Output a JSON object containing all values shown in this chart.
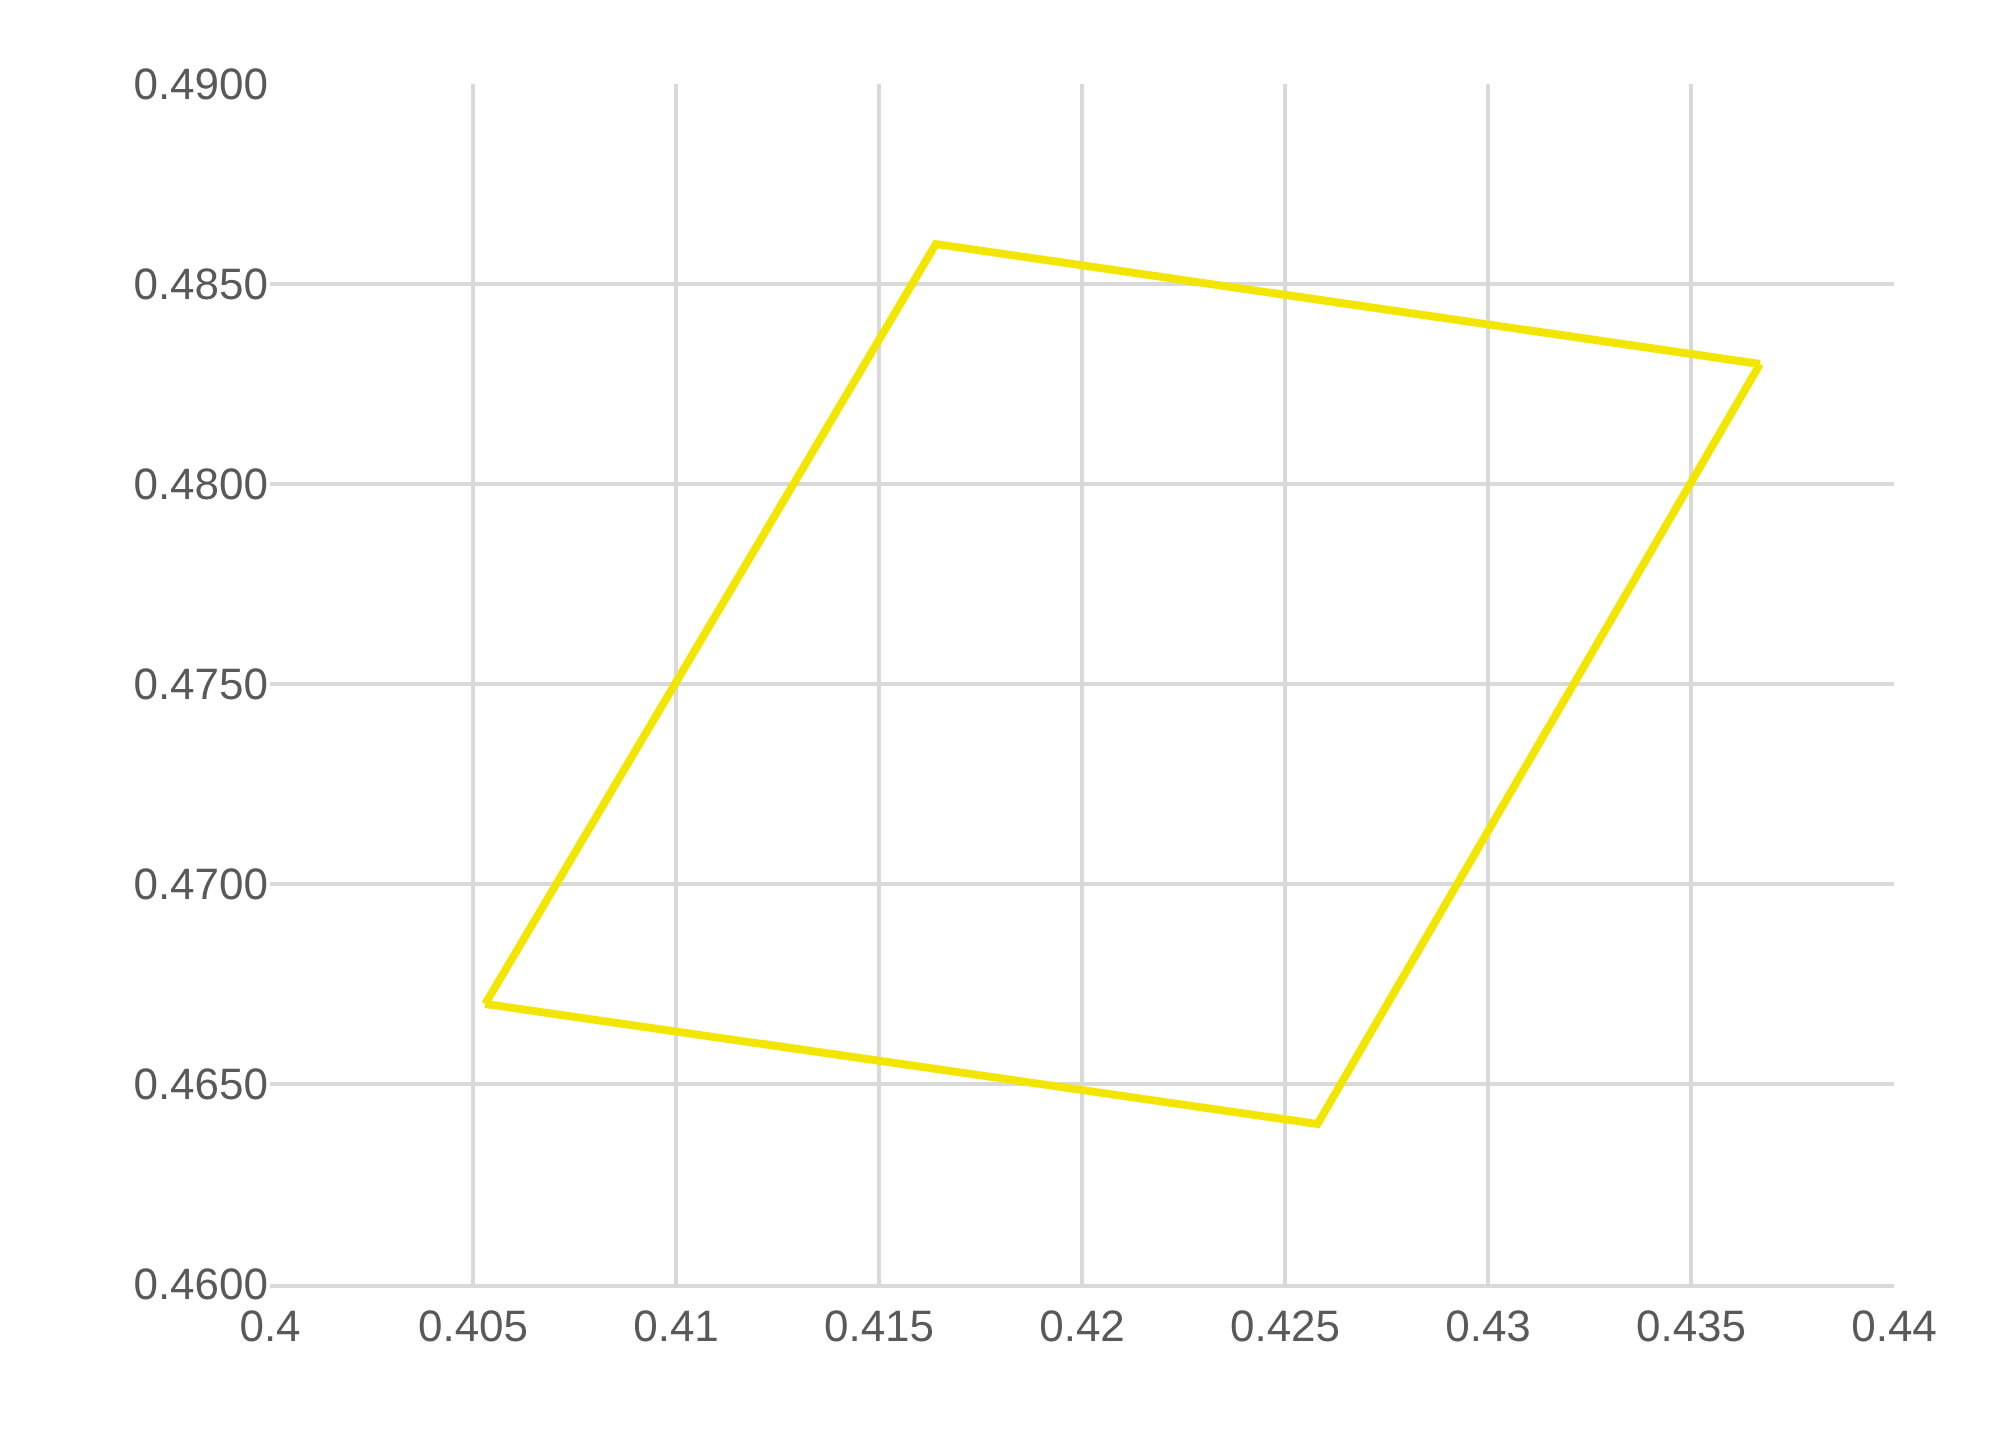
{
  "chart_data": {
    "type": "line",
    "series": [
      {
        "color": "#f2e600",
        "x": [
          0.4053,
          0.4164,
          0.4367
        ],
        "values": [
          0.467,
          0.486,
          0.483
        ]
      },
      {
        "color": "#f2e600",
        "x": [
          0.4053,
          0.4258,
          0.4367
        ],
        "values": [
          0.467,
          0.464,
          0.483
        ]
      }
    ],
    "xlim": [
      0.4,
      0.44
    ],
    "xticks": [
      0.4,
      0.405,
      0.41,
      0.415,
      0.42,
      0.425,
      0.43,
      0.435,
      0.44
    ],
    "ylim": [
      0.46,
      0.49
    ],
    "yticks": [
      {
        "value": 0.46,
        "label": "0.4600"
      },
      {
        "value": 0.465,
        "label": "0.4650"
      },
      {
        "value": 0.47,
        "label": "0.4700"
      },
      {
        "value": 0.475,
        "label": "0.4750"
      },
      {
        "value": 0.48,
        "label": "0.4800"
      },
      {
        "value": 0.485,
        "label": "0.4850"
      },
      {
        "value": 0.49,
        "label": "0.4900"
      }
    ],
    "grid": true,
    "marker": "none",
    "line_style": "solid"
  }
}
